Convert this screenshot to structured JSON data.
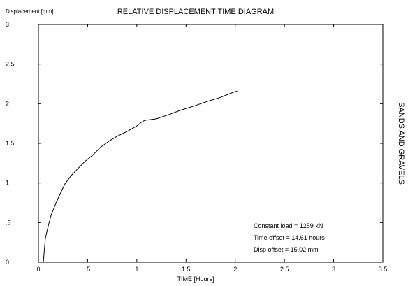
{
  "chart_data": {
    "type": "line",
    "title": "RELATIVE DISPLACEMENT TIME DIAGRAM",
    "ylabel": "Displacement [mm]",
    "xlabel": "TIME [Hours]",
    "side_label": "SANDS AND GRAVELS",
    "xlim": [
      0,
      3.5
    ],
    "ylim": [
      0,
      3
    ],
    "x_ticks": [
      {
        "value": 0,
        "label": "0"
      },
      {
        "value": 0.5,
        "label": ".5"
      },
      {
        "value": 1,
        "label": "1"
      },
      {
        "value": 1.5,
        "label": "1.5"
      },
      {
        "value": 2,
        "label": "2"
      },
      {
        "value": 2.5,
        "label": "2.5"
      },
      {
        "value": 3,
        "label": "3"
      },
      {
        "value": 3.5,
        "label": "3.5"
      }
    ],
    "y_ticks": [
      {
        "value": 0,
        "label": "0"
      },
      {
        "value": 0.5,
        "label": ".5"
      },
      {
        "value": 1,
        "label": "1"
      },
      {
        "value": 1.5,
        "label": "1.5"
      },
      {
        "value": 2,
        "label": "2"
      },
      {
        "value": 2.5,
        "label": "2.5"
      },
      {
        "value": 3,
        "label": "3"
      }
    ],
    "grid": false,
    "series": [
      {
        "x": [
          0.05,
          0.07,
          0.1,
          0.13,
          0.17,
          0.22,
          0.27,
          0.33,
          0.4,
          0.47,
          0.55,
          0.63,
          0.72,
          0.8,
          0.9,
          1.0,
          1.04,
          1.08,
          1.2,
          1.32,
          1.45,
          1.58,
          1.72,
          1.85,
          1.97,
          2.02
        ],
        "y": [
          0.0,
          0.3,
          0.46,
          0.6,
          0.72,
          0.86,
          0.99,
          1.09,
          1.18,
          1.27,
          1.35,
          1.45,
          1.53,
          1.59,
          1.65,
          1.72,
          1.76,
          1.79,
          1.81,
          1.86,
          1.92,
          1.97,
          2.03,
          2.08,
          2.14,
          2.16
        ]
      }
    ],
    "annotations": [
      "Constant load =  1259 kN",
      "Time offset   =  14.61 hours",
      "Disp offset   =  15.02 mm"
    ]
  }
}
